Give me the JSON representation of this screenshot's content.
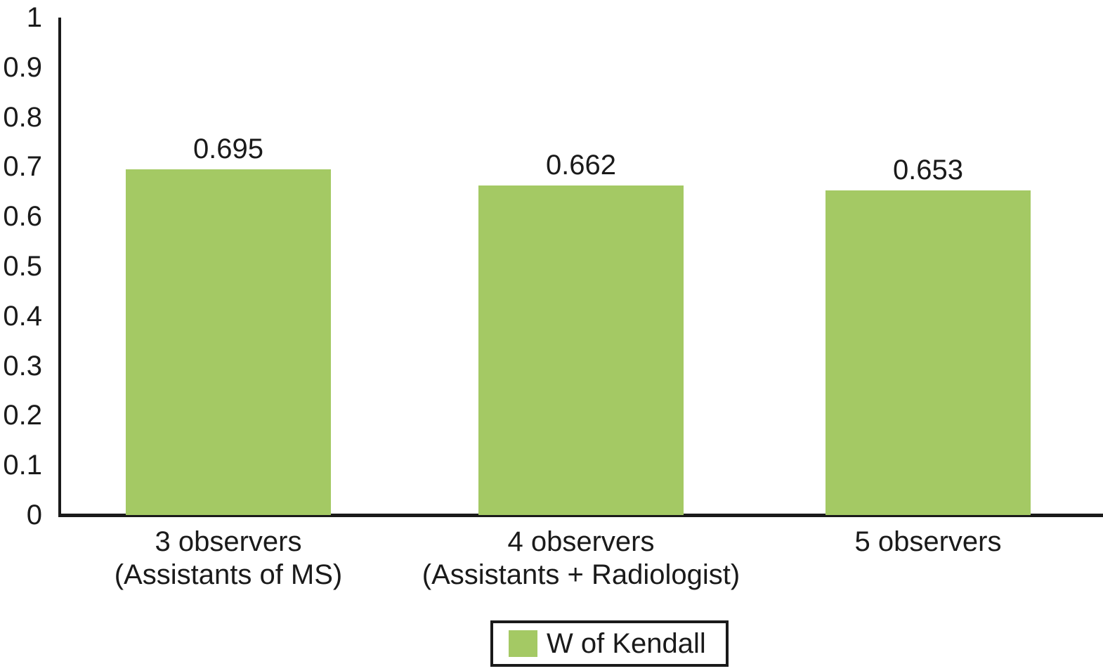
{
  "chart_data": {
    "type": "bar",
    "title": "",
    "categories": [
      {
        "lines": [
          "3 observers",
          "(Assistants of MS)"
        ]
      },
      {
        "lines": [
          "4 observers",
          "(Assistants + Radiologist)"
        ]
      },
      {
        "lines": [
          "5 observers"
        ]
      }
    ],
    "series": [
      {
        "name": "W of Kendall",
        "values": [
          0.695,
          0.662,
          0.653
        ],
        "color": "#a4c964"
      }
    ],
    "value_labels": [
      "0.695",
      "0.662",
      "0.653"
    ],
    "xlabel": "",
    "ylabel": "",
    "ylim": [
      0,
      1
    ],
    "y_ticks": [
      "0",
      "0.1",
      "0.2",
      "0.3",
      "0.4",
      "0.5",
      "0.6",
      "0.7",
      "0.8",
      "0.9",
      "1"
    ],
    "grid": false,
    "legend": {
      "label": "W of Kendall",
      "position": "bottom-center",
      "swatch_color": "#a4c964",
      "border_color": "#1a1a1a"
    },
    "colors": {
      "bar": "#a4c964",
      "axis": "#1a1a1a",
      "text": "#1a1a1a",
      "background": "#ffffff"
    }
  }
}
